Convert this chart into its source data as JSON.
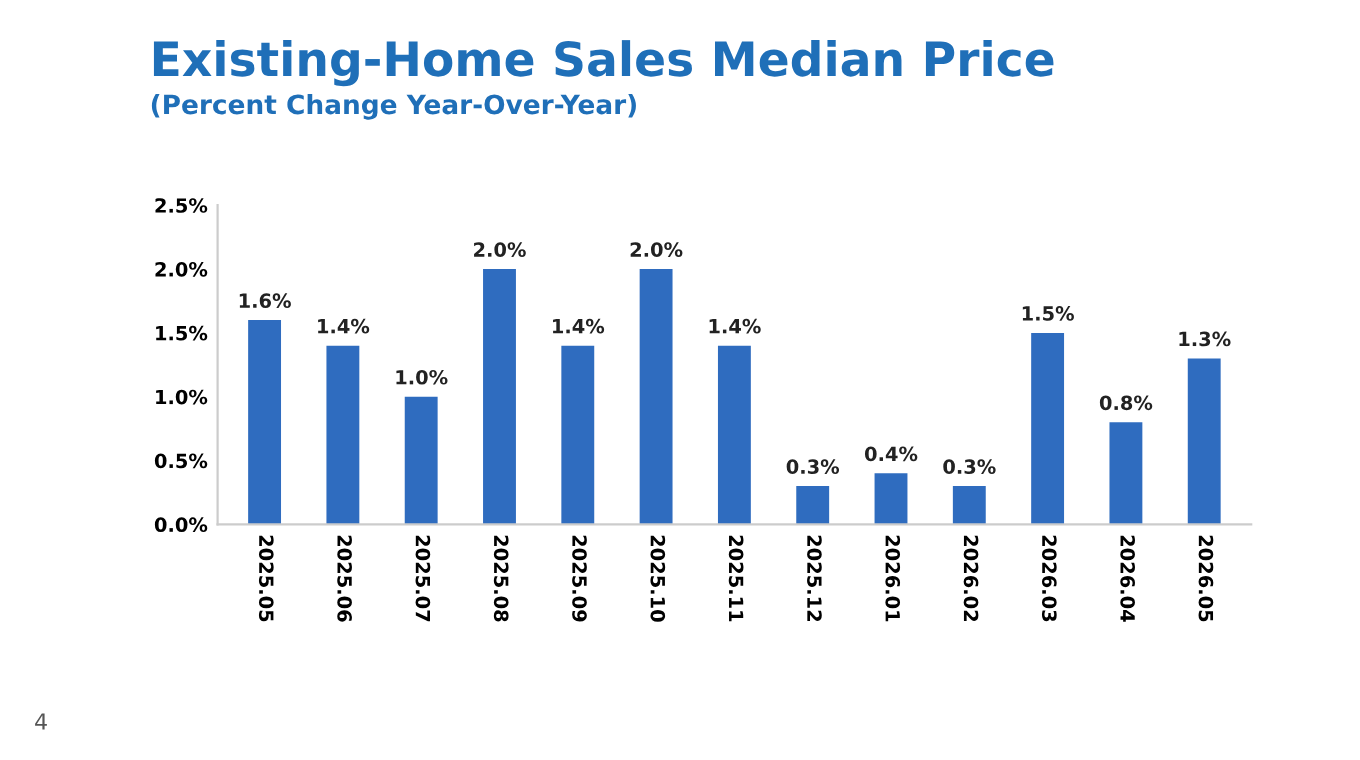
{
  "chart_data": {
    "type": "bar",
    "title": "Existing-Home Sales Median Price",
    "subtitle": "(Percent Change Year-Over-Year)",
    "categories": [
      "2025.05",
      "2025.06",
      "2025.07",
      "2025.08",
      "2025.09",
      "2025.10",
      "2025.11",
      "2025.12",
      "2026.01",
      "2026.02",
      "2026.03",
      "2026.04",
      "2026.05"
    ],
    "values": [
      1.6,
      1.4,
      1.0,
      2.0,
      1.4,
      2.0,
      1.4,
      0.3,
      0.4,
      0.3,
      1.5,
      0.8,
      1.3
    ],
    "value_labels": [
      "1.6%",
      "1.4%",
      "1.0%",
      "2.0%",
      "1.4%",
      "2.0%",
      "1.4%",
      "0.3%",
      "0.4%",
      "0.3%",
      "1.5%",
      "0.8%",
      "1.3%"
    ],
    "color": "#2f6cbf",
    "ylim": [
      0,
      2.5
    ],
    "yticks": [
      {
        "value": 0,
        "label": "0.0%"
      },
      {
        "value": 0.5,
        "label": "0.5%"
      },
      {
        "value": 1.0,
        "label": "1.0%"
      },
      {
        "value": 1.5,
        "label": "1.5%"
      },
      {
        "value": 2.0,
        "label": "2.0%"
      },
      {
        "value": 2.5,
        "label": "2.5%"
      }
    ],
    "grid": false,
    "legend": false,
    "annotations": [
      "4"
    ]
  }
}
